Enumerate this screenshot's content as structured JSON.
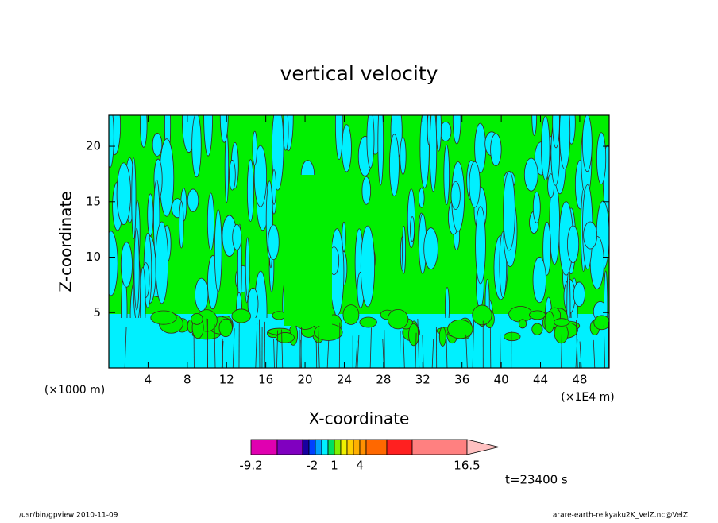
{
  "chart_data": {
    "type": "contour",
    "title": "vertical velocity",
    "x_label": "X-coordinate",
    "y_label": "Z-coordinate",
    "x_unit_left": "(×1000 m)",
    "x_unit_right": "(×1E4 m)",
    "time_label": "t=23400 s",
    "footer_left": "/usr/bin/gpview   2010-11-09",
    "footer_right": "arare-earth-reikyaku2K_VelZ.nc@VelZ",
    "xlim": [
      0,
      51
    ],
    "xticks": [
      4,
      8,
      12,
      16,
      20,
      24,
      28,
      32,
      36,
      40,
      44,
      48
    ],
    "ylim": [
      0,
      22.8
    ],
    "yticks": [
      5,
      10,
      15,
      20
    ],
    "colorbar": {
      "ticks": [
        -9.2,
        -2,
        1,
        4,
        16.5
      ],
      "colors": [
        "#e000b0",
        "#8000c0",
        "#1800a0",
        "#0040ff",
        "#00a0ff",
        "#00f0ff",
        "#00e060",
        "#80f000",
        "#f0f000",
        "#ffd000",
        "#ffb000",
        "#ff9000",
        "#ff6800",
        "#ff2020",
        "#ff8080"
      ],
      "extend_color": "#ffc0c0"
    }
  }
}
